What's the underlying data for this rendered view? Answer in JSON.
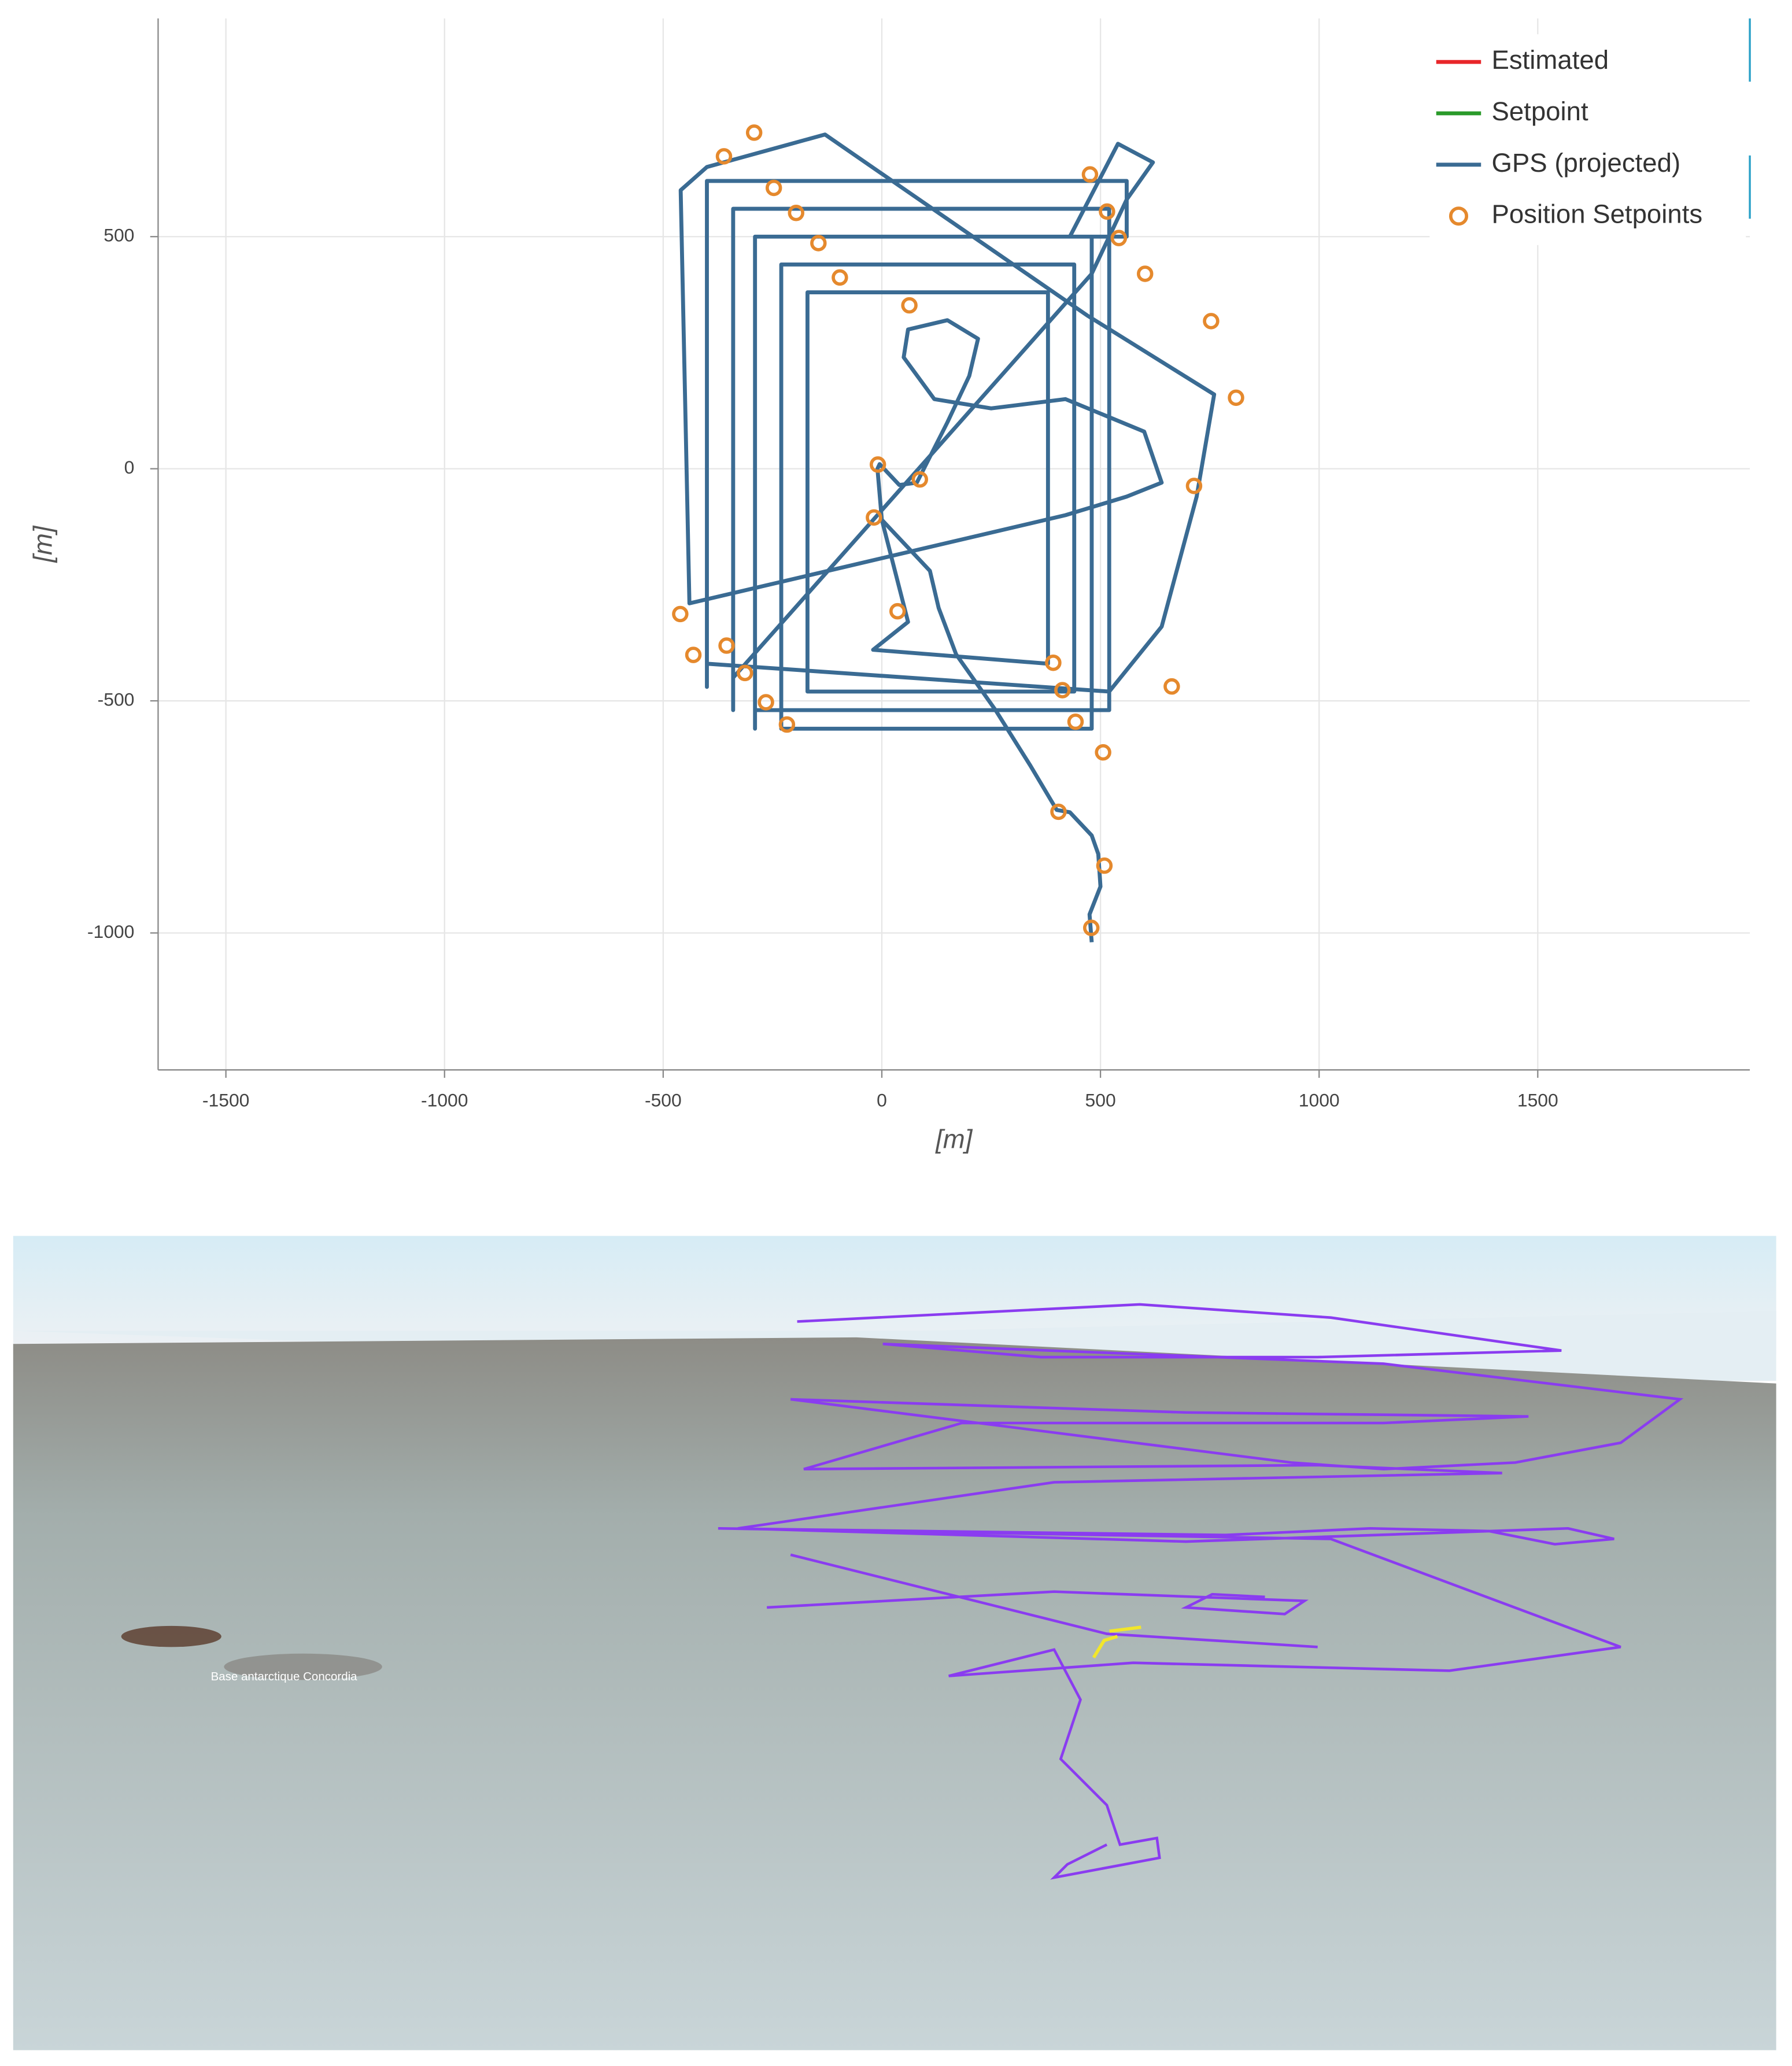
{
  "chart_data": {
    "type": "line",
    "xlabel": "[m]",
    "ylabel": "[m]",
    "xlim": [
      -1655,
      1985
    ],
    "ylim": [
      -1295,
      970
    ],
    "xticks": [
      -1500,
      -1000,
      -500,
      0,
      500,
      1000,
      1500
    ],
    "yticks": [
      -1000,
      -500,
      0,
      500
    ],
    "grid": true,
    "legend": "upper right",
    "series": [
      {
        "name": "Estimated",
        "type": "line",
        "color": "#e8262a",
        "x": [],
        "values": []
      },
      {
        "name": "Setpoint",
        "type": "line",
        "color": "#2a9a2a",
        "x": [],
        "values": []
      },
      {
        "name": "GPS (projected)",
        "type": "line",
        "color": "#3a6b93",
        "x": [
          480,
          475,
          500,
          495,
          480,
          430,
          400,
          340,
          260,
          170,
          130,
          110,
          0,
          -10,
          -5,
          40,
          80,
          150,
          200,
          220,
          150,
          60,
          50,
          120,
          250,
          420,
          600,
          640,
          560,
          420,
          -440,
          -460,
          -400,
          -130,
          470,
          760,
          720,
          640,
          520,
          -400,
          -400,
          -400,
          560,
          560,
          430,
          540,
          620,
          560,
          480,
          -340,
          -340,
          -340,
          520,
          520,
          -290,
          -290,
          -290,
          480,
          480,
          -230,
          -230,
          -230,
          440,
          440,
          -170,
          -170,
          -170,
          380,
          380,
          -20,
          60,
          0
        ],
        "values": [
          -1020,
          -960,
          -900,
          -830,
          -790,
          -740,
          -735,
          -640,
          -520,
          -400,
          -300,
          -220,
          -110,
          0,
          10,
          -35,
          -30,
          100,
          200,
          280,
          320,
          300,
          240,
          150,
          130,
          150,
          80,
          -30,
          -60,
          -100,
          -290,
          600,
          650,
          720,
          330,
          160,
          -60,
          -340,
          -480,
          -420,
          -470,
          620,
          620,
          500,
          500,
          700,
          660,
          580,
          420,
          -450,
          -520,
          560,
          560,
          -520,
          -520,
          -560,
          500,
          500,
          -560,
          -560,
          -480,
          440,
          440,
          -480,
          -480,
          -420,
          380,
          380,
          -420,
          -390,
          -330,
          -110
        ]
      },
      {
        "name": "Position Setpoints",
        "type": "scatter",
        "color": "#e5892d",
        "x": [
          -292,
          -361,
          -247,
          -196,
          -145,
          -96,
          63,
          -9,
          87,
          -18,
          36,
          -461,
          -431,
          -355,
          -313,
          -265,
          -217,
          392,
          413,
          443,
          506,
          404,
          509,
          479,
          663,
          476,
          515,
          542,
          602,
          753,
          810,
          714
        ],
        "values": [
          724,
          673,
          605,
          551,
          486,
          412,
          352,
          9,
          -23,
          -105,
          -307,
          -313,
          -401,
          -381,
          -440,
          -503,
          -551,
          -418,
          -477,
          -545,
          -611,
          -739,
          -855,
          -989,
          -469,
          634,
          554,
          497,
          420,
          318,
          153,
          -37
        ]
      }
    ]
  },
  "scene": {
    "place_label": "Base antarctique Concordia"
  }
}
